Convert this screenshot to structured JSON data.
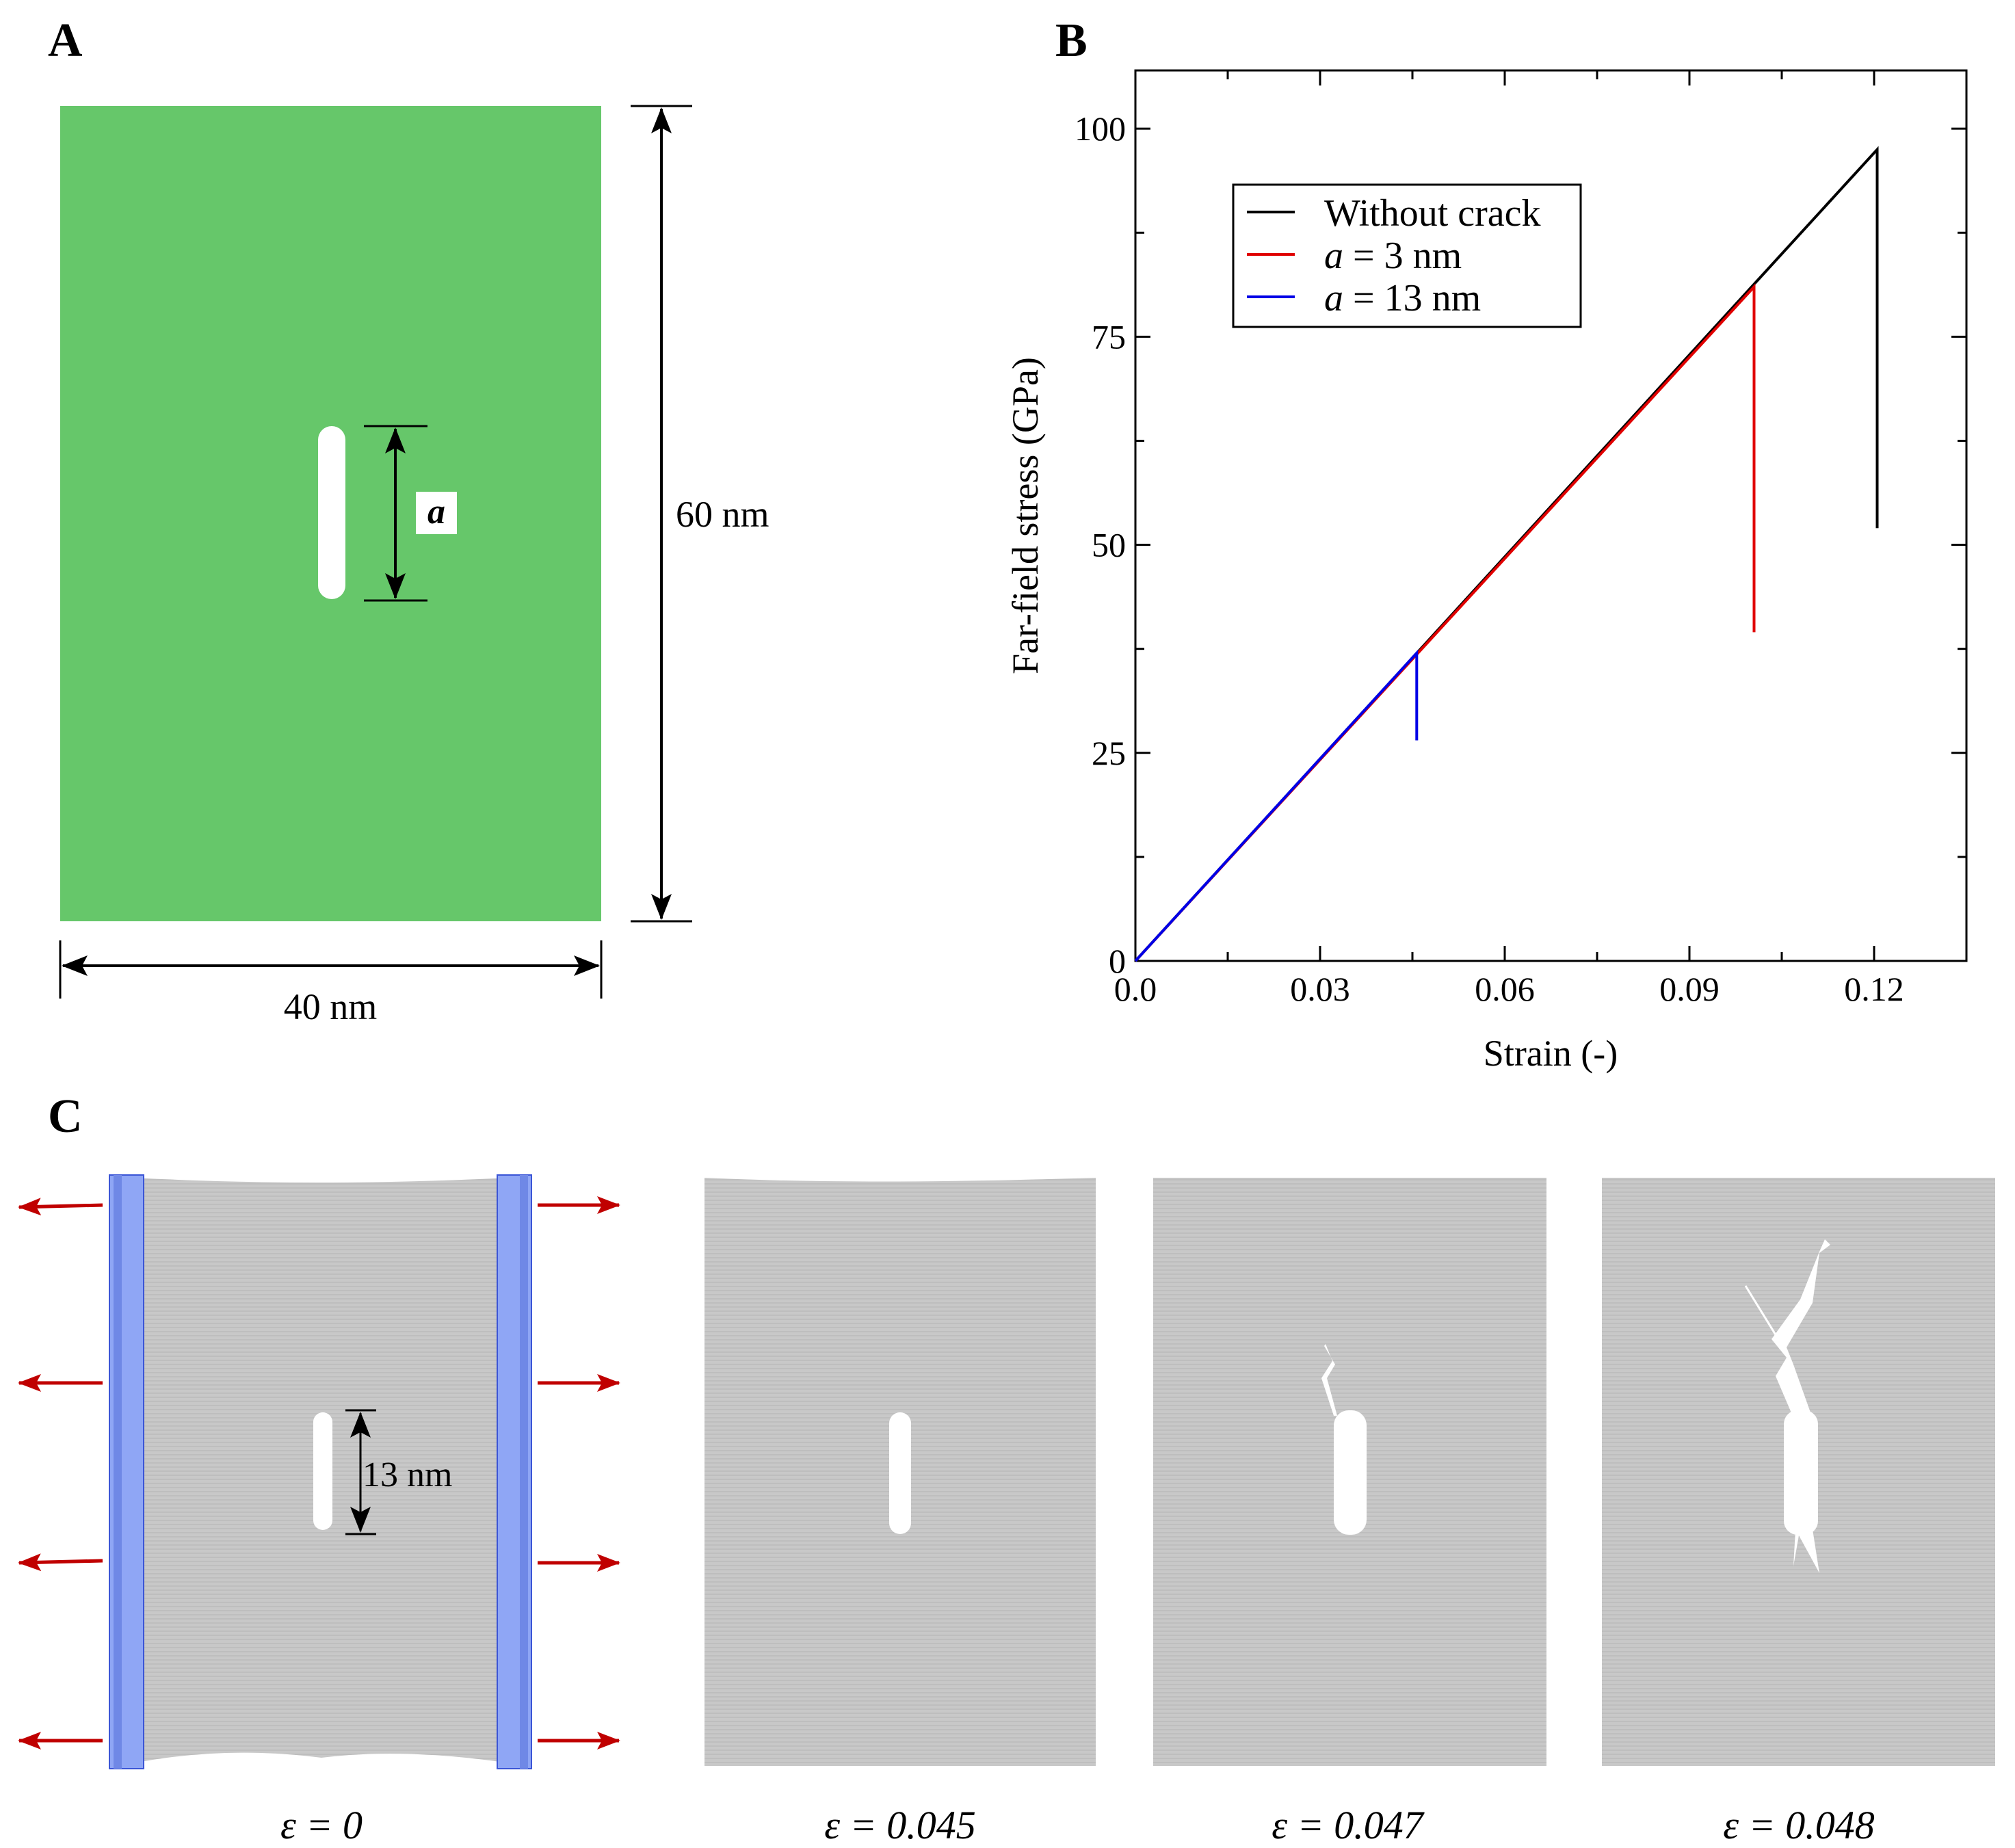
{
  "panel_labels": {
    "a": "A",
    "b": "B",
    "c": "C"
  },
  "panel_a": {
    "crack_label": "a",
    "width_label": "40 nm",
    "height_label": "60 nm",
    "sheet_color": "#66c76a"
  },
  "panel_c": {
    "crack_length_label": "13 nm",
    "snapshots": [
      {
        "strain_label": "ε = 0"
      },
      {
        "strain_label": "ε = 0.045"
      },
      {
        "strain_label": "ε = 0.047"
      },
      {
        "strain_label": "ε = 0.048"
      }
    ],
    "sheet_color": "#c8c8c8",
    "clamp_color": "#8fa6f5",
    "arrow_color": "#c00000"
  },
  "chart_data": {
    "type": "line",
    "xlabel": "Strain (-)",
    "ylabel": "Far-field stress (GPa)",
    "xlim": [
      0,
      0.135
    ],
    "ylim": [
      0,
      107
    ],
    "xticks": [
      0.0,
      0.03,
      0.06,
      0.09,
      0.12
    ],
    "xtick_labels": [
      "0.0",
      "0.03",
      "0.06",
      "0.09",
      "0.12"
    ],
    "yticks": [
      0,
      25,
      50,
      75,
      100
    ],
    "ytick_labels": [
      "0",
      "25",
      "50",
      "75",
      "100"
    ],
    "legend": {
      "placement": "top-left"
    },
    "series": [
      {
        "name": "Without crack",
        "prefix": "",
        "suffix": "Without crack",
        "color": "#000000",
        "x": [
          0.0,
          0.1205,
          0.1205
        ],
        "y": [
          0,
          97.5,
          52
        ]
      },
      {
        "name": "a = 3 nm",
        "prefix": "a",
        "suffix": " = 3 nm",
        "color": "#e00000",
        "x": [
          0.0,
          0.1005,
          0.1005
        ],
        "y": [
          0,
          81,
          39.5
        ]
      },
      {
        "name": "a = 13 nm",
        "prefix": "a",
        "suffix": " = 13 nm",
        "color": "#0000e6",
        "x": [
          0.0,
          0.0457,
          0.0457
        ],
        "y": [
          0,
          37,
          26.5
        ]
      }
    ]
  }
}
